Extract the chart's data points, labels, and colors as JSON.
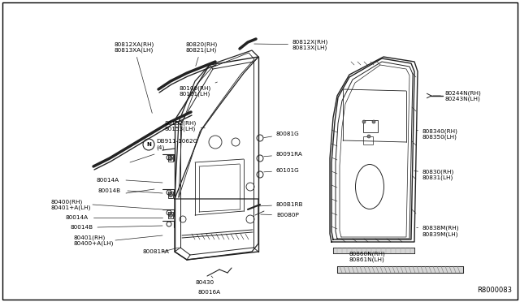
{
  "bg_color": "#ffffff",
  "diagram_id": "R8000083",
  "line_color": "#222222",
  "label_fontsize": 5.2,
  "parts": {
    "top_seal_left_label": "80812XA(RH)\n80813XA(LH)",
    "top_seal_right_label": "80812X(RH)\n80813X(LH)",
    "door_seal_label": "80820(RH)\n80821(LH)",
    "door_outer_label": "80100(RH)\n80101(LH)",
    "door_inner_label": "80152(RH)\n80153(LH)",
    "nut_label": "DB911-1062G\n   (4)",
    "hinge1a_label": "80014A",
    "hinge1b_label": "80014B",
    "hinge2_label": "80400(RH)\n80401+A(LH)",
    "hinge3a_label": "80014A",
    "hinge3b_label": "80014B",
    "hinge4_label": "80401(RH)\n80400+A(LH)",
    "seal_ra_label": "80081RA",
    "latch_label": "80430",
    "striker_label": "80016A",
    "bolt1_label": "80081G",
    "bolt2_label": "80091RA",
    "bolt3_label": "60101G",
    "sash1_label": "800B1RB",
    "sash2_label": "B0080P",
    "right_clip_label": "80244N(RH)\n80243N(LH)",
    "right_seal_a_label": "808340(RH)\n808350(LH)",
    "right_seal_b_label": "80830(RH)\n80831(LH)",
    "right_seal_c_label": "80838M(RH)\n80839M(LH)",
    "right_strip_label": "80860N(RH)\n80861N(LH)"
  }
}
